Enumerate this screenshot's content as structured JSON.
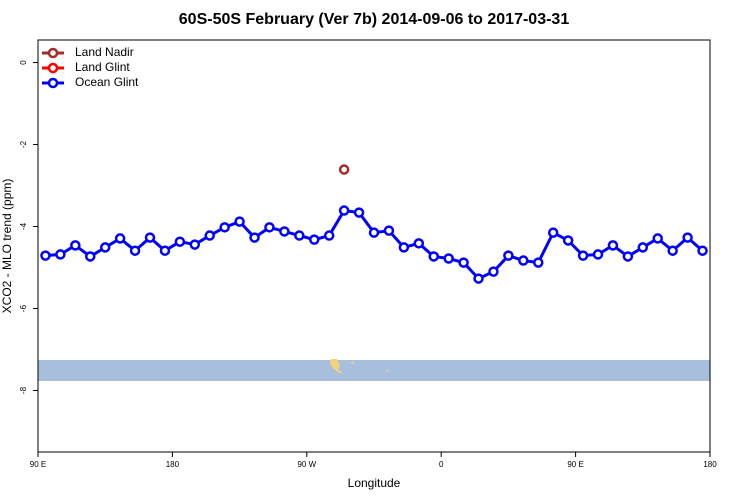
{
  "chart_data": {
    "type": "line",
    "title": "60S-50S February (Ver 7b)   2014-09-06 to 2017-03-31",
    "x_label": "Longitude",
    "y_label": "XCO2 - MLO trend (ppm)",
    "xlim": [
      90,
      540
    ],
    "xticks": [
      {
        "value": 90,
        "label": "90 E"
      },
      180,
      {
        "value": 270,
        "label": "90 W"
      },
      {
        "value": 360,
        "label": "0"
      },
      {
        "value": 450,
        "label": "90 E"
      },
      {
        "value": 540,
        "label": "180"
      }
    ],
    "ylim": [
      -9.5,
      0.55
    ],
    "yticks": [
      0,
      -2,
      -4,
      -6,
      -8
    ],
    "legend": "top-left",
    "series": [
      {
        "name": "Land Nadir",
        "color": "#a52a2a",
        "x": [
          295
        ],
        "values": [
          -2.61
        ]
      },
      {
        "name": "Land Glint",
        "color": "#ff0000",
        "x": [],
        "values": []
      },
      {
        "name": "Ocean Glint",
        "color": "#0000ff",
        "x": [
          95,
          105,
          115,
          125,
          135,
          145,
          155,
          165,
          175,
          185,
          195,
          205,
          215,
          225,
          235,
          245,
          255,
          265,
          275,
          285,
          295,
          305,
          315,
          325,
          335,
          345,
          355,
          365,
          375,
          385,
          395,
          405,
          415,
          425,
          435,
          445,
          455,
          465,
          475,
          485,
          495,
          505,
          515,
          525,
          535
        ],
        "values": [
          -4.71,
          -4.68,
          -4.46,
          -4.73,
          -4.51,
          -4.29,
          -4.59,
          -4.27,
          -4.59,
          -4.37,
          -4.44,
          -4.22,
          -4.02,
          -3.88,
          -4.27,
          -4.02,
          -4.12,
          -4.22,
          -4.32,
          -4.22,
          -3.61,
          -3.66,
          -4.15,
          -4.1,
          -4.51,
          -4.41,
          -4.73,
          -4.78,
          -4.88,
          -5.27,
          -5.1,
          -4.71,
          -4.83,
          -4.88,
          -4.15,
          -4.34,
          -4.71,
          -4.68,
          -4.46,
          -4.73,
          -4.51,
          -4.29,
          -4.59,
          -4.27,
          -4.59
        ]
      }
    ]
  }
}
